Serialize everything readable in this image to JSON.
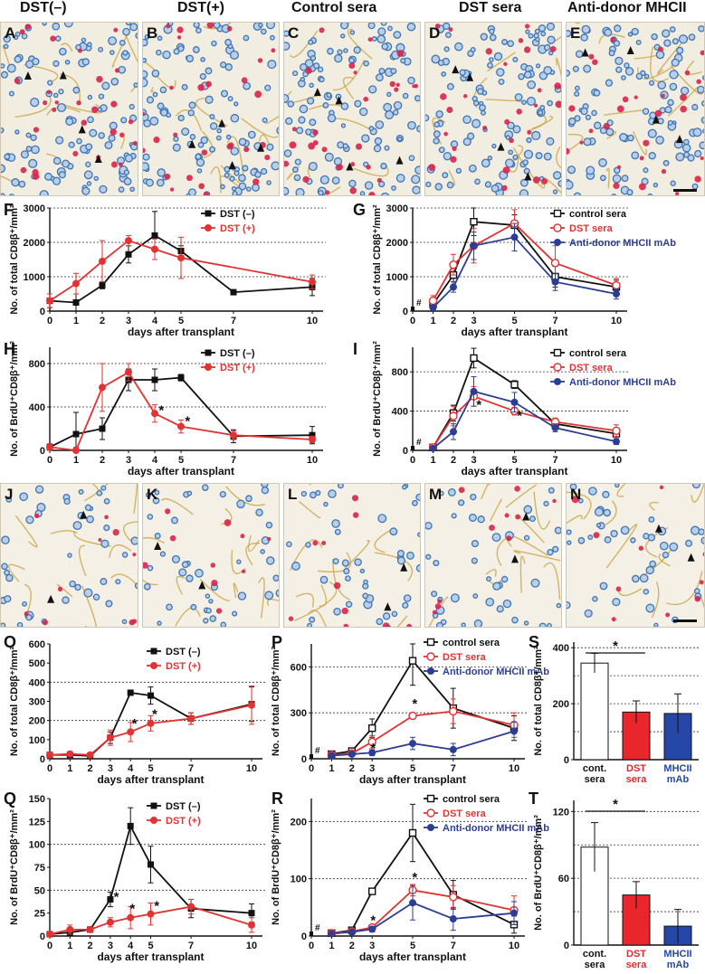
{
  "column_titles": [
    "DST(–)",
    "DST(+)",
    "Control sera",
    "DST sera",
    "Anti-donor MHCII"
  ],
  "image_panels_top": [
    "A",
    "B",
    "C",
    "D",
    "E"
  ],
  "image_panels_bottom": [
    "J",
    "K",
    "L",
    "M",
    "N"
  ],
  "colors": {
    "black": "#111111",
    "red": "#e23232",
    "blue": "#2c3d94",
    "accent_red": "#e8262b",
    "accent_blue": "#2548a8"
  },
  "chart_data": [
    {
      "id": "F",
      "type": "line",
      "ylabel": "No. of total CD8β⁺/mm²",
      "xlabel": "days after transplant",
      "x_ticks": [
        0,
        1,
        2,
        3,
        4,
        5,
        7,
        10
      ],
      "y_ticks": [
        0,
        1000,
        2000,
        3000
      ],
      "ylim": [
        0,
        3000
      ],
      "grid": [
        1000,
        2000,
        3000
      ],
      "series": [
        {
          "name": "DST (–)",
          "color": "#111111",
          "marker": "filled-square",
          "x": [
            0,
            1,
            2,
            3,
            4,
            5,
            7,
            10
          ],
          "y": [
            300,
            250,
            750,
            1650,
            2200,
            1750,
            550,
            700
          ],
          "err": [
            200,
            250,
            100,
            250,
            700,
            150,
            50,
            250
          ]
        },
        {
          "name": "DST (+)",
          "color": "#e23232",
          "marker": "filled-circle",
          "x": [
            0,
            1,
            2,
            3,
            4,
            5,
            10
          ],
          "y": [
            300,
            800,
            1450,
            2050,
            1800,
            1550,
            850
          ],
          "err": [
            200,
            300,
            600,
            150,
            300,
            600,
            200
          ]
        }
      ]
    },
    {
      "id": "G",
      "type": "line",
      "ylabel": "No. of total CD8β⁺/mm²",
      "xlabel": "days after transplant",
      "x_ticks": [
        0,
        1,
        2,
        3,
        5,
        7,
        10
      ],
      "y_ticks": [
        0,
        1000,
        2000,
        3000
      ],
      "ylim": [
        0,
        3000
      ],
      "grid": [
        1000,
        2000,
        3000
      ],
      "baseline_mark": "#",
      "series": [
        {
          "name": "control sera",
          "color": "#111111",
          "marker": "open-square",
          "x": [
            1,
            2,
            3,
            5,
            7,
            10
          ],
          "y": [
            200,
            1050,
            2600,
            2500,
            1000,
            700
          ],
          "err": [
            100,
            200,
            400,
            300,
            300,
            200
          ]
        },
        {
          "name": "DST sera",
          "color": "#e23232",
          "marker": "open-circle",
          "x": [
            1,
            2,
            3,
            5,
            7,
            10
          ],
          "y": [
            300,
            1350,
            1900,
            2550,
            1400,
            750
          ],
          "err": [
            150,
            300,
            500,
            400,
            500,
            200
          ]
        },
        {
          "name": "Anti-donor MHCII mAb",
          "color": "#2c3d94",
          "marker": "filled-circle",
          "x": [
            1,
            2,
            3,
            5,
            7,
            10
          ],
          "y": [
            100,
            700,
            1900,
            2150,
            850,
            500
          ],
          "err": [
            50,
            150,
            400,
            400,
            250,
            150
          ]
        }
      ]
    },
    {
      "id": "H",
      "type": "line",
      "ylabel": "No. of BrdU⁺CD8β⁺/mm²",
      "xlabel": "days after transplant",
      "x_ticks": [
        0,
        1,
        2,
        3,
        4,
        5,
        7,
        10
      ],
      "y_ticks": [
        0,
        400,
        800
      ],
      "ylim": [
        0,
        950
      ],
      "grid": [
        400,
        800
      ],
      "annotations": [
        {
          "text": "*",
          "x": 4.25,
          "y": 330
        },
        {
          "text": "*",
          "x": 5.25,
          "y": 230
        }
      ],
      "series": [
        {
          "name": "DST (–)",
          "color": "#111111",
          "marker": "filled-square",
          "x": [
            0,
            1,
            2,
            3,
            4,
            5,
            7,
            10
          ],
          "y": [
            30,
            150,
            200,
            650,
            650,
            670,
            130,
            140
          ],
          "err": [
            30,
            200,
            100,
            100,
            100,
            30,
            60,
            80
          ]
        },
        {
          "name": "DST (+)",
          "color": "#e23232",
          "marker": "filled-circle",
          "x": [
            0,
            1,
            2,
            3,
            4,
            5,
            7,
            10
          ],
          "y": [
            30,
            0,
            580,
            720,
            340,
            220,
            140,
            100
          ],
          "err": [
            30,
            30,
            220,
            80,
            80,
            60,
            40,
            30
          ]
        }
      ]
    },
    {
      "id": "I",
      "type": "line",
      "ylabel": "No. of BrdU⁺CD8β⁺/mm²",
      "xlabel": "days after transplant",
      "x_ticks": [
        0,
        1,
        2,
        3,
        5,
        7,
        10
      ],
      "y_ticks": [
        0,
        400,
        800
      ],
      "ylim": [
        0,
        1050
      ],
      "grid": [
        400,
        800
      ],
      "baseline_mark": "#",
      "annotations": [
        {
          "text": "*",
          "x": 3.25,
          "y": 420
        },
        {
          "text": "*",
          "x": 5.25,
          "y": 310
        }
      ],
      "series": [
        {
          "name": "control sera",
          "color": "#111111",
          "marker": "open-square",
          "x": [
            1,
            2,
            3,
            5,
            7,
            10
          ],
          "y": [
            30,
            380,
            940,
            670,
            270,
            170
          ],
          "err": [
            20,
            80,
            100,
            40,
            40,
            60
          ]
        },
        {
          "name": "DST sera",
          "color": "#e23232",
          "marker": "open-circle",
          "x": [
            1,
            2,
            3,
            5,
            7,
            10
          ],
          "y": [
            30,
            350,
            550,
            400,
            290,
            200
          ],
          "err": [
            20,
            100,
            100,
            40,
            40,
            60
          ]
        },
        {
          "name": "Anti-donor MHCII mAb",
          "color": "#2c3d94",
          "marker": "filled-circle",
          "x": [
            1,
            2,
            3,
            5,
            7,
            10
          ],
          "y": [
            20,
            190,
            600,
            490,
            230,
            90
          ],
          "err": [
            10,
            80,
            150,
            100,
            40,
            30
          ]
        }
      ]
    },
    {
      "id": "O",
      "type": "line",
      "ylabel": "No. of total CD8β⁺/mm²",
      "xlabel": "days after transplant",
      "x_ticks": [
        0,
        1,
        2,
        3,
        4,
        5,
        7,
        10
      ],
      "y_ticks": [
        0,
        100,
        200,
        300,
        400,
        500,
        600
      ],
      "ylim": [
        0,
        600
      ],
      "grid": [
        200,
        400
      ],
      "annotations": [
        {
          "text": "*",
          "x": 4.2,
          "y": 160
        },
        {
          "text": "*",
          "x": 5.2,
          "y": 210
        }
      ],
      "series": [
        {
          "name": "DST (–)",
          "color": "#111111",
          "marker": "filled-square",
          "x": [
            0,
            1,
            2,
            3,
            4,
            5,
            7,
            10
          ],
          "y": [
            20,
            20,
            15,
            110,
            345,
            330,
            210,
            285
          ],
          "err": [
            10,
            10,
            10,
            30,
            0,
            45,
            30,
            90
          ]
        },
        {
          "name": "DST (+)",
          "color": "#e23232",
          "marker": "filled-circle",
          "x": [
            0,
            1,
            2,
            3,
            4,
            5,
            7,
            10
          ],
          "y": [
            20,
            25,
            20,
            110,
            140,
            185,
            210,
            280
          ],
          "err": [
            10,
            10,
            10,
            40,
            50,
            40,
            30,
            100
          ]
        }
      ]
    },
    {
      "id": "P",
      "type": "line",
      "ylabel": "No. of total CD8β⁺/mm²",
      "xlabel": "days after transplant",
      "x_ticks": [
        0,
        1,
        2,
        3,
        5,
        7,
        10
      ],
      "y_ticks": [
        0,
        300,
        600
      ],
      "ylim": [
        0,
        750
      ],
      "grid": [
        300,
        600
      ],
      "baseline_mark": "#",
      "annotations": [
        {
          "text": "*",
          "x": 5.1,
          "y": 330
        },
        {
          "text": "*",
          "x": 3.05,
          "y": 40
        }
      ],
      "series": [
        {
          "name": "control sera",
          "color": "#111111",
          "marker": "open-square",
          "x": [
            1,
            2,
            3,
            5,
            7,
            10
          ],
          "y": [
            30,
            50,
            200,
            640,
            330,
            200
          ],
          "err": [
            10,
            20,
            60,
            160,
            130,
            80
          ]
        },
        {
          "name": "DST sera",
          "color": "#e23232",
          "marker": "open-circle",
          "x": [
            1,
            2,
            3,
            5,
            7,
            10
          ],
          "y": [
            25,
            35,
            110,
            280,
            310,
            220
          ],
          "err": [
            10,
            20,
            40,
            20,
            80,
            80
          ]
        },
        {
          "name": "Anti-donor MHCII mAb",
          "color": "#2c3d94",
          "marker": "filled-circle",
          "x": [
            1,
            2,
            3,
            5,
            7,
            10
          ],
          "y": [
            20,
            30,
            40,
            100,
            60,
            180
          ],
          "err": [
            10,
            10,
            20,
            40,
            40,
            60
          ]
        }
      ]
    },
    {
      "id": "Q",
      "type": "line",
      "ylabel": "No. of BrdU⁺CD8β⁺/mm²",
      "xlabel": "days after transplant",
      "x_ticks": [
        0,
        1,
        2,
        3,
        4,
        5,
        7,
        10
      ],
      "y_ticks": [
        0,
        25,
        50,
        75,
        100,
        125,
        150
      ],
      "ylim": [
        0,
        150
      ],
      "grid": [
        50,
        100
      ],
      "annotations": [
        {
          "text": "*",
          "x": 3.3,
          "y": 38
        },
        {
          "text": "*",
          "x": 4.1,
          "y": 25
        },
        {
          "text": "*",
          "x": 5.3,
          "y": 28
        }
      ],
      "series": [
        {
          "name": "DST (–)",
          "color": "#111111",
          "marker": "filled-square",
          "x": [
            0,
            1,
            2,
            3,
            4,
            5,
            7,
            10
          ],
          "y": [
            2,
            4,
            7,
            40,
            120,
            78,
            30,
            25
          ],
          "err": [
            2,
            3,
            3,
            8,
            20,
            20,
            10,
            10
          ]
        },
        {
          "name": "DST (+)",
          "color": "#e23232",
          "marker": "filled-circle",
          "x": [
            0,
            1,
            2,
            3,
            4,
            5,
            7,
            10
          ],
          "y": [
            2,
            7,
            7,
            15,
            20,
            24,
            32,
            12
          ],
          "err": [
            2,
            5,
            3,
            5,
            12,
            12,
            8,
            8
          ]
        }
      ]
    },
    {
      "id": "R",
      "type": "line",
      "ylabel": "No. of BrdU⁺CD8β⁺/mm²",
      "xlabel": "days after transplant",
      "x_ticks": [
        0,
        1,
        2,
        3,
        5,
        7,
        10
      ],
      "y_ticks": [
        0,
        100,
        200
      ],
      "ylim": [
        0,
        240
      ],
      "grid": [
        100,
        200
      ],
      "baseline_mark": "#",
      "annotations": [
        {
          "text": "*",
          "x": 5.1,
          "y": 95
        },
        {
          "text": "*",
          "x": 3.05,
          "y": 20
        }
      ],
      "series": [
        {
          "name": "control sera",
          "color": "#111111",
          "marker": "open-square",
          "x": [
            1,
            2,
            3,
            5,
            7,
            10
          ],
          "y": [
            5,
            10,
            78,
            180,
            72,
            20
          ],
          "err": [
            3,
            5,
            5,
            50,
            25,
            15
          ]
        },
        {
          "name": "DST sera",
          "color": "#e23232",
          "marker": "open-circle",
          "x": [
            1,
            2,
            3,
            5,
            7,
            10
          ],
          "y": [
            5,
            8,
            15,
            80,
            68,
            45
          ],
          "err": [
            3,
            4,
            5,
            10,
            20,
            25
          ]
        },
        {
          "name": "Anti-donor MHCII mAb",
          "color": "#2c3d94",
          "marker": "filled-circle",
          "x": [
            1,
            2,
            3,
            5,
            7,
            10
          ],
          "y": [
            4,
            7,
            12,
            58,
            30,
            40
          ],
          "err": [
            3,
            4,
            5,
            30,
            20,
            20
          ]
        }
      ]
    },
    {
      "id": "S",
      "type": "bar",
      "ylabel": "No. of total CD8β⁺/mm²",
      "categories": [
        "cont. sera",
        "DST sera",
        "MHCII mAb"
      ],
      "category_colors": [
        "#111111",
        "#e8262b",
        "#2548a8"
      ],
      "fills": [
        "#ffffff",
        "#e8262b",
        "#2548a8"
      ],
      "values": [
        345,
        170,
        165
      ],
      "err": [
        35,
        40,
        70
      ],
      "y_ticks": [
        0,
        200,
        400
      ],
      "ylim": [
        0,
        420
      ],
      "grid": [
        100,
        200,
        300,
        400
      ],
      "significance": "*"
    },
    {
      "id": "T",
      "type": "bar",
      "ylabel": "No. of BrdU⁺CD8β⁺/mm²",
      "categories": [
        "cont. sera",
        "DST sera",
        "MHCII mAb"
      ],
      "category_colors": [
        "#111111",
        "#e8262b",
        "#2548a8"
      ],
      "fills": [
        "#ffffff",
        "#e8262b",
        "#2548a8"
      ],
      "values": [
        88,
        45,
        17
      ],
      "err": [
        22,
        12,
        15
      ],
      "y_ticks": [
        0,
        60,
        120
      ],
      "ylim": [
        0,
        130
      ],
      "grid": [
        30,
        60,
        90,
        120
      ],
      "significance": "*"
    }
  ]
}
